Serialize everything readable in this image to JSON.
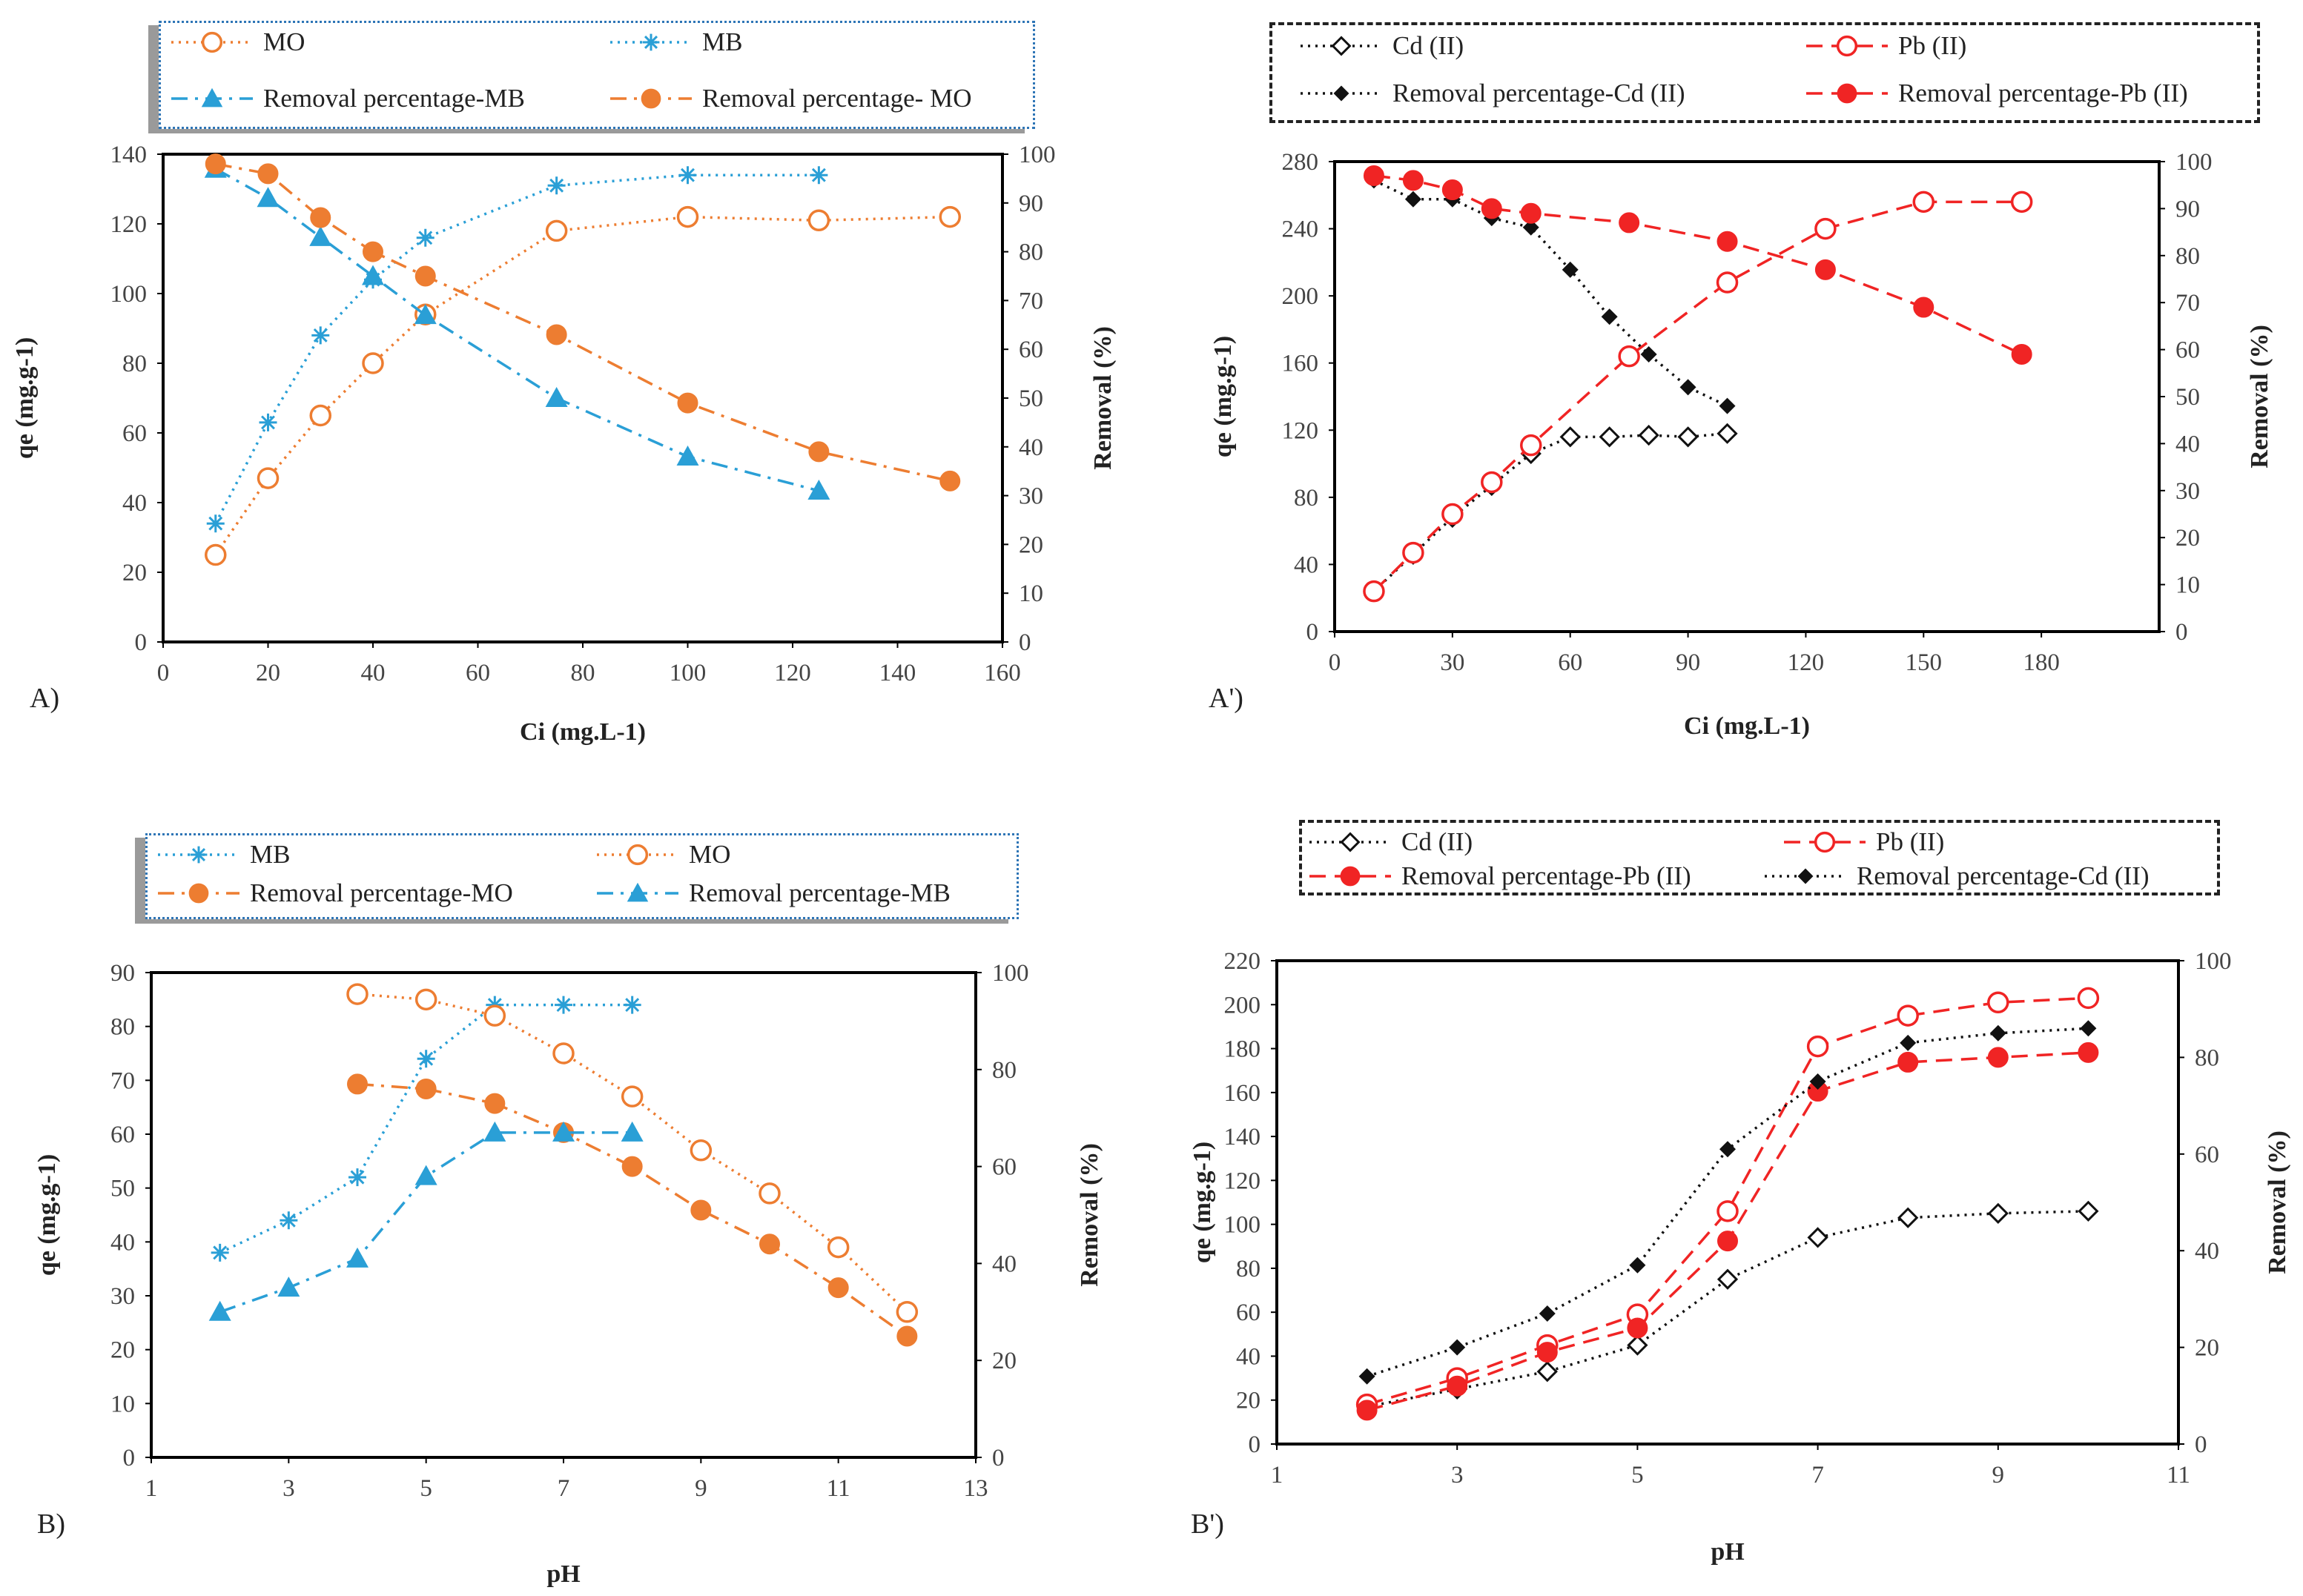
{
  "colors": {
    "orange": "#ed7d31",
    "blue": "#2a9fd6",
    "blue_dark": "#1f7fc0",
    "red": "#f02424",
    "black": "#111111"
  },
  "panels": [
    {
      "label": "A)"
    },
    {
      "label": "A')"
    },
    {
      "label": "B)"
    },
    {
      "label": "B')"
    }
  ],
  "chart_data": [
    {
      "id": "A",
      "type": "line",
      "title": "",
      "xlabel": "Ci (mg.L-1)",
      "ylabel": "qe (mg.g-1)",
      "y2label": "Removal (%)",
      "xlim": [
        0,
        160
      ],
      "xticks": [
        0,
        20,
        40,
        60,
        80,
        100,
        120,
        140,
        160
      ],
      "ylim": [
        0,
        140
      ],
      "yticks": [
        0,
        20,
        40,
        60,
        80,
        100,
        120,
        140
      ],
      "y2lim": [
        0,
        100
      ],
      "y2ticks": [
        0,
        10,
        20,
        30,
        40,
        50,
        60,
        70,
        80,
        90,
        100
      ],
      "grid": false,
      "legend": {
        "position": "top",
        "entries": [
          "MO",
          "MB",
          "Removal percentage-MB",
          "Removal percentage- MO"
        ]
      },
      "series": [
        {
          "name": "MO",
          "axis": "left",
          "color": "orange",
          "dash": "dot",
          "marker": "circle-open",
          "x": [
            10,
            20,
            30,
            40,
            50,
            75,
            100,
            125,
            150
          ],
          "y": [
            25,
            47,
            65,
            80,
            94,
            118,
            122,
            121,
            122
          ]
        },
        {
          "name": "MB",
          "axis": "left",
          "color": "blue",
          "dash": "dot",
          "marker": "asterisk",
          "x": [
            10,
            20,
            30,
            40,
            50,
            75,
            100,
            125
          ],
          "y": [
            34,
            63,
            88,
            104,
            116,
            131,
            134,
            134
          ]
        },
        {
          "name": "Removal percentage-MB",
          "axis": "right",
          "color": "blue",
          "dash": "dashdot",
          "marker": "triangle",
          "x": [
            10,
            20,
            30,
            40,
            50,
            75,
            100,
            125
          ],
          "y": [
            97,
            91,
            83,
            75,
            67,
            50,
            38,
            31
          ]
        },
        {
          "name": "Removal percentage- MO",
          "axis": "right",
          "color": "orange",
          "dash": "dashdot",
          "marker": "circle",
          "x": [
            10,
            20,
            30,
            40,
            50,
            75,
            100,
            125,
            150
          ],
          "y": [
            98,
            96,
            87,
            80,
            75,
            63,
            49,
            39,
            33
          ]
        }
      ]
    },
    {
      "id": "A'",
      "type": "line",
      "title": "",
      "xlabel": "Ci (mg.L-1)",
      "ylabel": "qe (mg.g-1)",
      "y2label": "Removal (%)",
      "xlim": [
        0,
        210
      ],
      "xticks": [
        0,
        30,
        60,
        90,
        120,
        150,
        180
      ],
      "ylim": [
        0,
        280
      ],
      "yticks": [
        0,
        40,
        80,
        120,
        160,
        200,
        240,
        280
      ],
      "y2lim": [
        0,
        100
      ],
      "y2ticks": [
        0,
        10,
        20,
        30,
        40,
        50,
        60,
        70,
        80,
        90,
        100
      ],
      "grid": false,
      "legend": {
        "position": "top",
        "entries": [
          "Cd (II)",
          "Pb (II)",
          "Removal percentage-Cd (II)",
          "Removal percentage-Pb (II)"
        ]
      },
      "series": [
        {
          "name": "Cd (II)",
          "axis": "left",
          "color": "black",
          "dash": "dot",
          "marker": "diamond-open",
          "x": [
            10,
            20,
            30,
            40,
            50,
            60,
            70,
            80,
            90,
            100
          ],
          "y": [
            24,
            46,
            68,
            87,
            106,
            116,
            116,
            117,
            116,
            118
          ]
        },
        {
          "name": "Pb (II)",
          "axis": "left",
          "color": "red",
          "dash": "dash",
          "marker": "circle-open",
          "x": [
            10,
            20,
            30,
            40,
            50,
            75,
            100,
            125,
            150,
            175
          ],
          "y": [
            24,
            47,
            70,
            89,
            111,
            164,
            208,
            240,
            256,
            256
          ]
        },
        {
          "name": "Removal percentage-Cd (II)",
          "axis": "right",
          "color": "black",
          "dash": "dot",
          "marker": "diamond",
          "x": [
            10,
            20,
            30,
            40,
            50,
            60,
            70,
            80,
            90,
            100
          ],
          "y": [
            96,
            92,
            92,
            88,
            86,
            77,
            67,
            59,
            52,
            48
          ]
        },
        {
          "name": "Removal percentage-Pb (II)",
          "axis": "right",
          "color": "red",
          "dash": "dash",
          "marker": "circle",
          "x": [
            10,
            20,
            30,
            40,
            50,
            75,
            100,
            125,
            150,
            175
          ],
          "y": [
            97,
            96,
            94,
            90,
            89,
            87,
            83,
            77,
            69,
            59
          ]
        }
      ]
    },
    {
      "id": "B",
      "type": "line",
      "title": "",
      "xlabel": "pH",
      "ylabel": "qe (mg.g-1)",
      "y2label": "Removal (%)",
      "xlim": [
        1,
        13
      ],
      "xticks": [
        1,
        3,
        5,
        7,
        9,
        11,
        13
      ],
      "ylim": [
        0,
        90
      ],
      "yticks": [
        0,
        10,
        20,
        30,
        40,
        50,
        60,
        70,
        80,
        90
      ],
      "y2lim": [
        0,
        100
      ],
      "y2ticks": [
        0,
        20,
        40,
        60,
        80,
        100
      ],
      "grid": false,
      "legend": {
        "position": "top",
        "entries": [
          "MB",
          "MO",
          "Removal percentage-MO",
          "Removal percentage-MB"
        ]
      },
      "series": [
        {
          "name": "MB",
          "axis": "left",
          "color": "blue",
          "dash": "dot",
          "marker": "asterisk",
          "x": [
            2,
            3,
            4,
            5,
            6,
            7,
            8
          ],
          "y": [
            38,
            44,
            52,
            74,
            84,
            84,
            84
          ]
        },
        {
          "name": "MO",
          "axis": "left",
          "color": "orange",
          "dash": "dot",
          "marker": "circle-open",
          "x": [
            4,
            5,
            6,
            7,
            8,
            9,
            10,
            11,
            12
          ],
          "y": [
            86,
            85,
            82,
            75,
            67,
            57,
            49,
            39,
            27
          ]
        },
        {
          "name": "Removal percentage-MO",
          "axis": "right",
          "color": "orange",
          "dash": "dashdot",
          "marker": "circle",
          "x": [
            4,
            5,
            6,
            7,
            8,
            9,
            10,
            11,
            12
          ],
          "y": [
            77,
            76,
            73,
            67,
            60,
            51,
            44,
            35,
            25
          ]
        },
        {
          "name": "Removal percentage-MB",
          "axis": "right",
          "color": "blue",
          "dash": "dashdot",
          "marker": "triangle",
          "x": [
            2,
            3,
            4,
            5,
            6,
            7,
            8
          ],
          "y": [
            30,
            35,
            41,
            58,
            67,
            67,
            67
          ]
        }
      ]
    },
    {
      "id": "B'",
      "type": "line",
      "title": "",
      "xlabel": "pH",
      "ylabel": "qe (mg.g-1)",
      "y2label": "Removal (%)",
      "xlim": [
        1,
        11
      ],
      "xticks": [
        1,
        3,
        5,
        7,
        9,
        11
      ],
      "ylim": [
        0,
        220
      ],
      "yticks": [
        0,
        20,
        40,
        60,
        80,
        100,
        120,
        140,
        160,
        180,
        200,
        220
      ],
      "y2lim": [
        0,
        100
      ],
      "y2ticks": [
        0,
        20,
        40,
        60,
        80,
        100
      ],
      "grid": false,
      "legend": {
        "position": "top",
        "entries": [
          "Cd (II)",
          "Pb (II)",
          "Removal percentage-Pb (II)",
          "Removal percentage-Cd (II)"
        ]
      },
      "series": [
        {
          "name": "Cd (II)",
          "axis": "left",
          "color": "black",
          "dash": "dot",
          "marker": "diamond-open",
          "x": [
            2,
            3,
            4,
            5,
            6,
            7,
            8,
            9,
            10
          ],
          "y": [
            17,
            25,
            33,
            45,
            75,
            94,
            103,
            105,
            106
          ]
        },
        {
          "name": "Pb (II)",
          "axis": "left",
          "color": "red",
          "dash": "dash",
          "marker": "circle-open",
          "x": [
            2,
            3,
            4,
            5,
            6,
            7,
            8,
            9,
            10
          ],
          "y": [
            18,
            30,
            45,
            59,
            106,
            181,
            195,
            201,
            203
          ]
        },
        {
          "name": "Removal percentage-Pb (II)",
          "axis": "right",
          "color": "red",
          "dash": "dash",
          "marker": "circle",
          "x": [
            2,
            3,
            4,
            5,
            6,
            7,
            8,
            9,
            10
          ],
          "y": [
            7,
            12,
            19,
            24,
            42,
            73,
            79,
            80,
            81
          ]
        },
        {
          "name": "Removal percentage-Cd (II)",
          "axis": "right",
          "color": "black",
          "dash": "dot",
          "marker": "diamond",
          "x": [
            2,
            3,
            4,
            5,
            6,
            7,
            8,
            9,
            10
          ],
          "y": [
            14,
            20,
            27,
            37,
            61,
            75,
            83,
            85,
            86
          ]
        }
      ]
    }
  ]
}
